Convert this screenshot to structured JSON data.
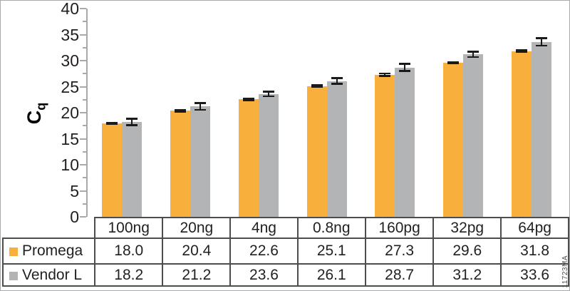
{
  "watermark": "11723MA",
  "ylabel": {
    "main": "C",
    "sub": "q"
  },
  "chart_data": {
    "type": "bar",
    "title": "",
    "categories": [
      "100ng",
      "20ng",
      "4ng",
      "0.8ng",
      "160pg",
      "32pg",
      "64pg"
    ],
    "series": [
      {
        "name": "Promega",
        "color": "#f9af3b",
        "values": [
          18.0,
          20.4,
          22.6,
          25.1,
          27.3,
          29.6,
          31.8
        ],
        "errors": [
          0.15,
          0.2,
          0.2,
          0.2,
          0.25,
          0.15,
          0.2
        ]
      },
      {
        "name": "Vendor L",
        "color": "#b3b4b6",
        "values": [
          18.2,
          21.2,
          23.6,
          26.1,
          28.7,
          31.2,
          33.6
        ],
        "errors": [
          0.65,
          0.7,
          0.5,
          0.6,
          0.7,
          0.55,
          0.75
        ]
      }
    ],
    "ylabel": "Cq",
    "xlabel": "",
    "ylim": [
      0,
      40
    ],
    "ytick_step": 5,
    "yminor_step": 2.5,
    "grid": false,
    "legend_position": "table-left-column",
    "error_bar_color": "#1a1a1a",
    "axis_color": "#a7a9ac",
    "table_border_color": "#4d4d4f"
  }
}
